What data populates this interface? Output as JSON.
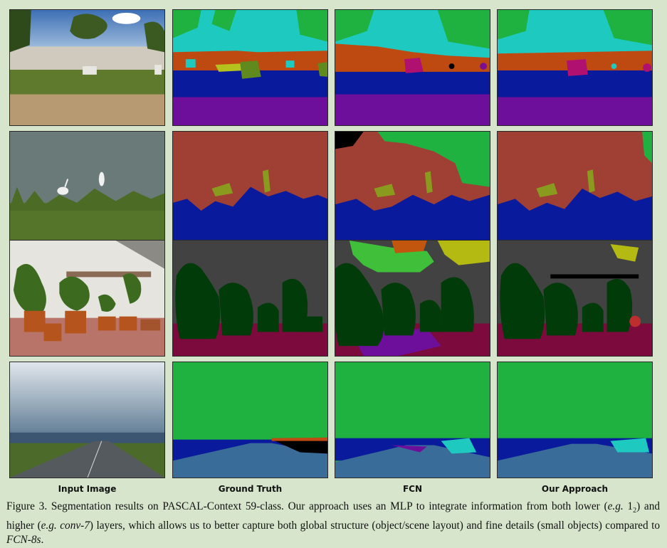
{
  "columns": [
    "Input Image",
    "Ground Truth",
    "FCN",
    "Our Approach"
  ],
  "caption": {
    "label": "Figure 3.",
    "text_1": " Segmentation results on PASCAL-Context 59-class. Our approach uses an MLP to integrate information from both lower (",
    "eg_1": "e.g.",
    "sym": "1",
    "sym_sub": "2",
    "text_2": ") and higher (",
    "eg_2": "e.g.",
    "conv": "conv-7",
    "text_3": ") layers, which allows us to better capture both global structure (object/scene layout) and fine details (small objects) compared to ",
    "fcn": "FCN-8s",
    "text_4": "."
  },
  "colors": {
    "background": "#d6e5cb",
    "sky": "#1ec9c0",
    "ground": "#0a1a9c",
    "road_area": "#6e0f9c",
    "building": "#be4a12",
    "water": "#a03f34",
    "bird": "#8a9a1e",
    "grass": "#1fb241",
    "wall": "#424242",
    "plant": "#013b09",
    "floor": "#7c0a3c",
    "road": "#3a6c9a"
  }
}
